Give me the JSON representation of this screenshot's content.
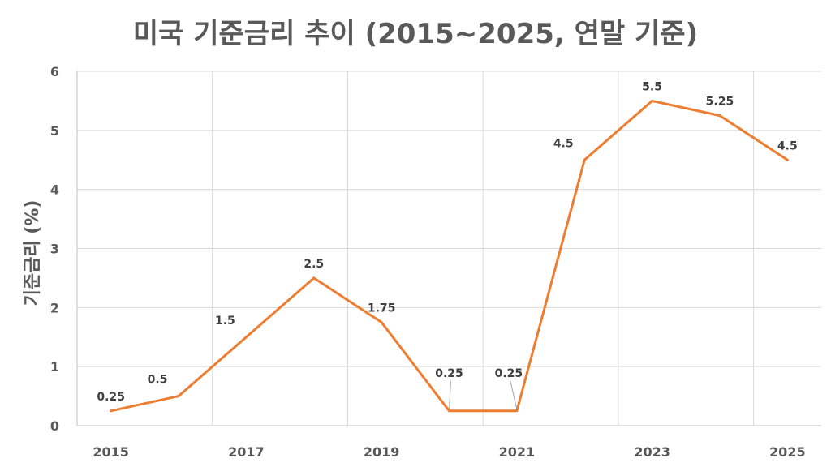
{
  "chart_data": {
    "type": "line",
    "title": "미국 기준금리 추이 (2015~2025, 연말 기준)",
    "xlabel": "",
    "ylabel": "기준금리 (%)",
    "x": [
      2015,
      2016,
      2017,
      2018,
      2019,
      2020,
      2021,
      2022,
      2023,
      2024,
      2025
    ],
    "x_tick_labels": [
      "2015",
      "2017",
      "2019",
      "2021",
      "2023",
      "2025"
    ],
    "ylim": [
      0,
      6
    ],
    "y_ticks": [
      0,
      1,
      2,
      3,
      4,
      5,
      6
    ],
    "grid": true,
    "series": [
      {
        "color": "#ED7D31",
        "values": [
          0.25,
          0.5,
          1.5,
          2.5,
          1.75,
          0.25,
          0.25,
          4.5,
          5.5,
          5.25,
          4.5
        ],
        "data_labels": [
          "0.25",
          "0.5",
          "1.5",
          "2.5",
          "1.75",
          "0.25",
          "0.25",
          "4.5",
          "5.5",
          "5.25",
          "4.5"
        ]
      }
    ]
  }
}
